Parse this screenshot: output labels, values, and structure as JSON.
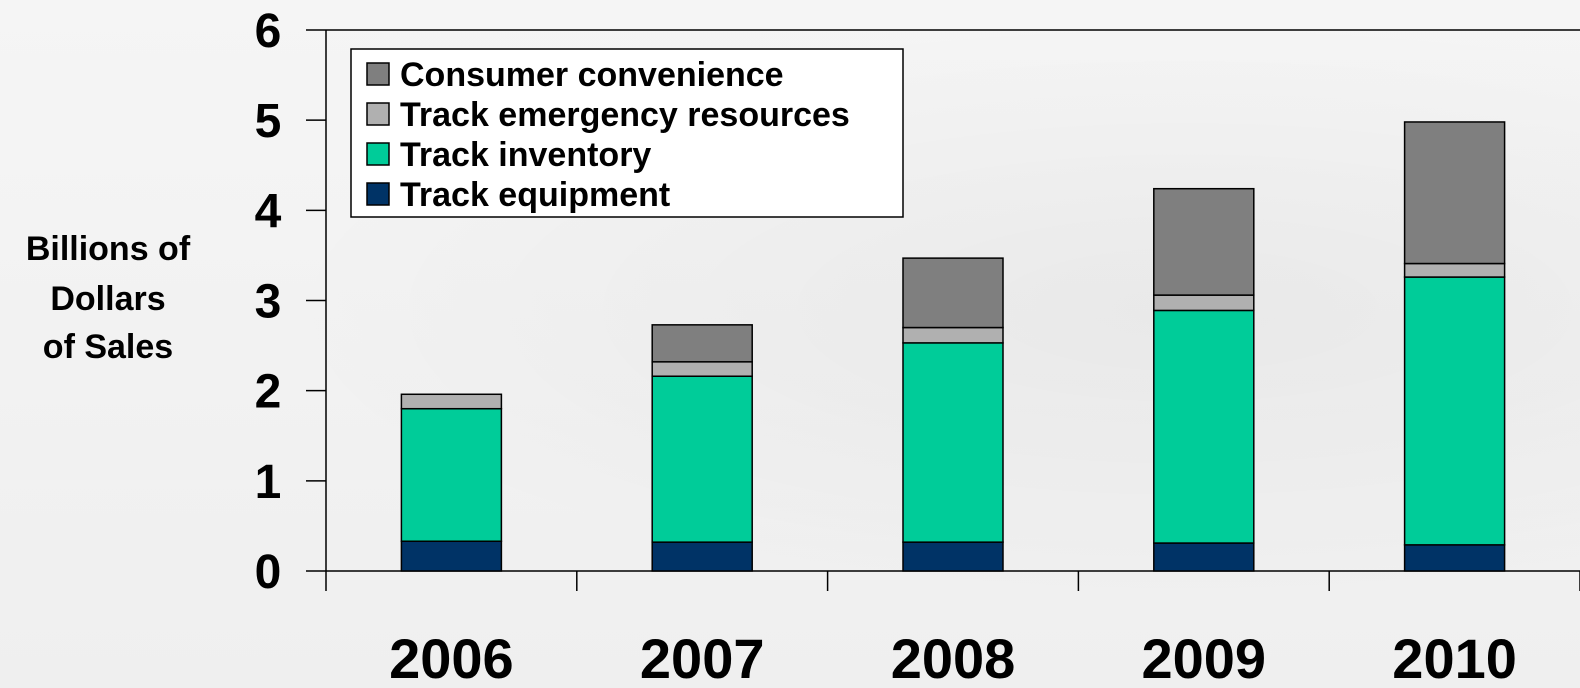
{
  "chart_data": {
    "type": "bar",
    "stacked": true,
    "categories": [
      "2006",
      "2007",
      "2008",
      "2009",
      "2010"
    ],
    "series": [
      {
        "name": "Track equipment",
        "values": [
          0.33,
          0.32,
          0.32,
          0.31,
          0.29
        ],
        "color": "#003366"
      },
      {
        "name": "Track inventory",
        "values": [
          1.47,
          1.84,
          2.21,
          2.58,
          2.97
        ],
        "color": "#00CC99"
      },
      {
        "name": "Track emergency resources",
        "values": [
          0.16,
          0.16,
          0.17,
          0.17,
          0.15
        ],
        "color": "#B0B0B0"
      },
      {
        "name": "Consumer convenience",
        "values": [
          0.0,
          0.41,
          0.77,
          1.18,
          1.57
        ],
        "color": "#7F7F7F"
      }
    ],
    "legend_order": [
      "Consumer convenience",
      "Track emergency resources",
      "Track inventory",
      "Track equipment"
    ],
    "ylabel_lines": [
      "Billions of",
      "Dollars",
      "of Sales"
    ],
    "xlabel": "",
    "title": "",
    "ylim": [
      0,
      6
    ],
    "yticks": [
      "0",
      "1",
      "2",
      "3",
      "4",
      "5",
      "6"
    ],
    "grid": false,
    "legend_position": "top-left"
  }
}
